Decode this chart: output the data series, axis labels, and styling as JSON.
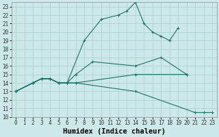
{
  "xlabel": "Humidex (Indice chaleur)",
  "xlim": [
    -0.5,
    23.5
  ],
  "ylim": [
    10,
    23.5
  ],
  "xticks": [
    0,
    1,
    2,
    3,
    4,
    5,
    6,
    7,
    8,
    9,
    10,
    11,
    12,
    13,
    14,
    15,
    16,
    17,
    18,
    19,
    20,
    21,
    22,
    23
  ],
  "yticks": [
    10,
    11,
    12,
    13,
    14,
    15,
    16,
    17,
    18,
    19,
    20,
    21,
    22,
    23
  ],
  "bg_color": "#cce8e8",
  "line_color": "#1a7068",
  "lines": [
    {
      "x": [
        0,
        2,
        3,
        4,
        5,
        6,
        8,
        10,
        12,
        13,
        14,
        15,
        16,
        17,
        18,
        19
      ],
      "y": [
        13,
        14,
        14.5,
        14.5,
        14,
        14,
        19,
        21.5,
        22,
        22.5,
        23.5,
        21,
        20,
        19.5,
        19,
        20.5
      ]
    },
    {
      "x": [
        0,
        2,
        3,
        4,
        5,
        6,
        7,
        9,
        14,
        17,
        20
      ],
      "y": [
        13,
        14,
        14.5,
        14.5,
        14,
        14,
        15,
        16.5,
        16,
        17,
        15
      ]
    },
    {
      "x": [
        0,
        2,
        3,
        4,
        5,
        6,
        7,
        14,
        20
      ],
      "y": [
        13,
        14,
        14.5,
        14.5,
        14,
        14,
        14,
        15,
        15
      ]
    },
    {
      "x": [
        0,
        2,
        3,
        4,
        5,
        6,
        7,
        14,
        21,
        22,
        23
      ],
      "y": [
        13,
        14,
        14.5,
        14.5,
        14,
        14,
        14,
        13,
        10.5,
        10.5,
        10.5
      ]
    }
  ],
  "grid_color": "#a8cccc",
  "tick_fontsize": 5.5,
  "xlabel_fontsize": 7.5
}
